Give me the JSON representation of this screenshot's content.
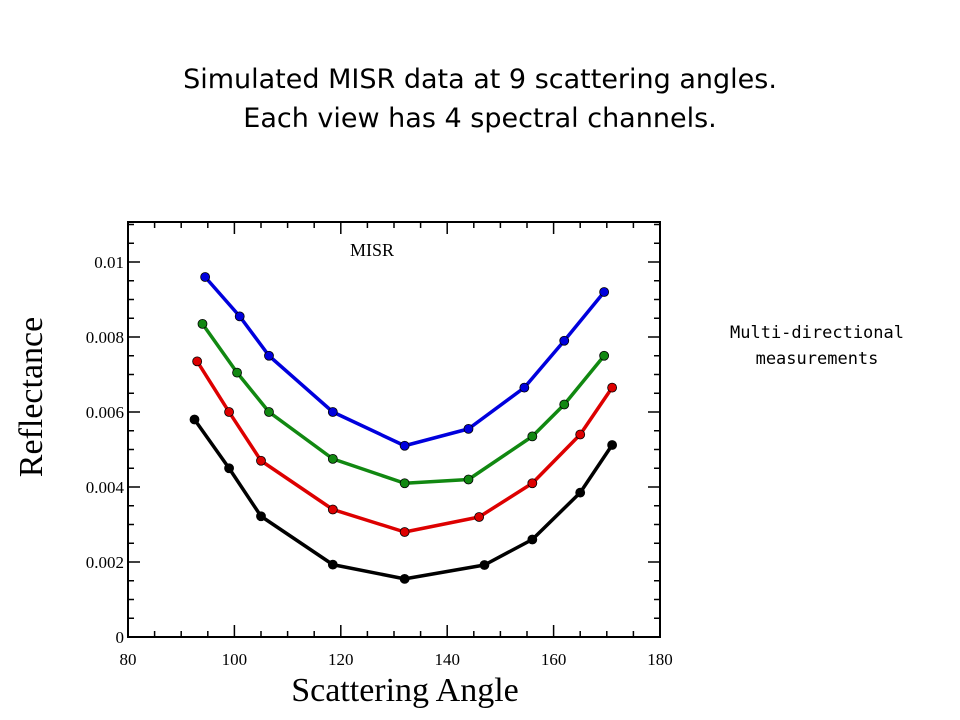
{
  "title_lines": [
    "Simulated MISR data at 9 scattering angles.",
    "Each view has 4 spectral channels."
  ],
  "side_note": {
    "line1": "Multi-directional",
    "line2": "measurements"
  },
  "chart_data": {
    "type": "line",
    "title": "",
    "annotation": "MISR",
    "xlabel": "Scattering Angle",
    "ylabel": "Reflectance",
    "xlim": [
      80,
      180
    ],
    "ylim": [
      0,
      0.011
    ],
    "xticks": [
      80,
      100,
      120,
      140,
      160,
      180
    ],
    "yticks": [
      0,
      0.002,
      0.004,
      0.006,
      0.008,
      0.01
    ],
    "ytick_labels": [
      "0",
      "0.002",
      "0.004",
      "0.006",
      "0.008",
      "0.01"
    ],
    "grid": false,
    "legend": "none",
    "series": [
      {
        "color": "#0000dd",
        "x": [
          94.5,
          101,
          106.5,
          118.5,
          132,
          144,
          154.5,
          162,
          169.5
        ],
        "y": [
          0.0096,
          0.00855,
          0.0075,
          0.006,
          0.0051,
          0.00555,
          0.00665,
          0.0079,
          0.0092
        ]
      },
      {
        "color": "#118811",
        "x": [
          94,
          100.5,
          106.5,
          118.5,
          132,
          144,
          156,
          162,
          169.5
        ],
        "y": [
          0.00835,
          0.00705,
          0.006,
          0.00475,
          0.0041,
          0.0042,
          0.00535,
          0.0062,
          0.0075
        ]
      },
      {
        "color": "#dd0000",
        "x": [
          93,
          99,
          105,
          118.5,
          132,
          146,
          156,
          165,
          171
        ],
        "y": [
          0.00735,
          0.006,
          0.0047,
          0.0034,
          0.0028,
          0.0032,
          0.0041,
          0.0054,
          0.00665
        ]
      },
      {
        "color": "#000000",
        "x": [
          92.5,
          99,
          105,
          118.5,
          132,
          147,
          156,
          165,
          171
        ],
        "y": [
          0.0058,
          0.0045,
          0.00322,
          0.00193,
          0.00155,
          0.00192,
          0.0026,
          0.00385,
          0.00512
        ]
      }
    ]
  }
}
